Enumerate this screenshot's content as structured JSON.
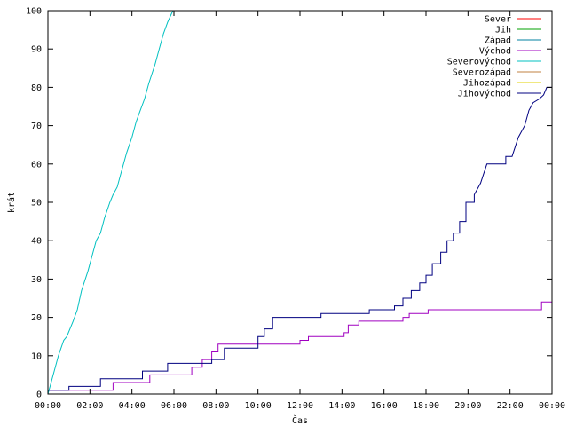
{
  "chart_data": {
    "type": "line",
    "xlabel": "Čas",
    "ylabel": "krát",
    "xlim": [
      0,
      24
    ],
    "ylim": [
      0,
      100
    ],
    "x_ticks": [
      "00:00",
      "02:00",
      "04:00",
      "06:00",
      "08:00",
      "10:00",
      "12:00",
      "14:00",
      "16:00",
      "18:00",
      "20:00",
      "22:00",
      "00:00"
    ],
    "y_ticks": [
      "0",
      "10",
      "20",
      "30",
      "40",
      "50",
      "60",
      "70",
      "80",
      "90",
      "100"
    ],
    "grid": false,
    "legend_position": "top-right",
    "series": [
      {
        "name": "Sever",
        "color": "#ff0000",
        "points": []
      },
      {
        "name": "Jih",
        "color": "#00a000",
        "points": []
      },
      {
        "name": "Západ",
        "color": "#0080a0",
        "points": []
      },
      {
        "name": "Východ",
        "color": "#a000c0",
        "points": [
          [
            0.0,
            1
          ],
          [
            3.1,
            1
          ],
          [
            3.1,
            3
          ],
          [
            4.85,
            3
          ],
          [
            4.85,
            5
          ],
          [
            6.85,
            5
          ],
          [
            6.85,
            7
          ],
          [
            7.35,
            7
          ],
          [
            7.35,
            9
          ],
          [
            7.8,
            9
          ],
          [
            7.8,
            11
          ],
          [
            8.1,
            11
          ],
          [
            8.1,
            13
          ],
          [
            12.0,
            13
          ],
          [
            12.0,
            14
          ],
          [
            12.4,
            14
          ],
          [
            12.4,
            15
          ],
          [
            14.1,
            15
          ],
          [
            14.1,
            16
          ],
          [
            14.3,
            16
          ],
          [
            14.3,
            18
          ],
          [
            14.8,
            18
          ],
          [
            14.8,
            19
          ],
          [
            16.9,
            19
          ],
          [
            16.9,
            20
          ],
          [
            17.2,
            20
          ],
          [
            17.2,
            21
          ],
          [
            18.1,
            21
          ],
          [
            18.1,
            22
          ],
          [
            23.5,
            22
          ],
          [
            23.5,
            24
          ],
          [
            24.0,
            24
          ]
        ]
      },
      {
        "name": "Severovýchod",
        "color": "#00c0c0",
        "points": [
          [
            0.0,
            0
          ],
          [
            0.1,
            2
          ],
          [
            0.3,
            6
          ],
          [
            0.5,
            10
          ],
          [
            0.75,
            14
          ],
          [
            0.9,
            15
          ],
          [
            1.2,
            19
          ],
          [
            1.4,
            22
          ],
          [
            1.6,
            27
          ],
          [
            1.9,
            32
          ],
          [
            2.1,
            36
          ],
          [
            2.3,
            40
          ],
          [
            2.5,
            42
          ],
          [
            2.7,
            46
          ],
          [
            2.95,
            50
          ],
          [
            3.1,
            52
          ],
          [
            3.3,
            54
          ],
          [
            3.5,
            58
          ],
          [
            3.75,
            63
          ],
          [
            4.0,
            67
          ],
          [
            4.2,
            71
          ],
          [
            4.4,
            74
          ],
          [
            4.6,
            77
          ],
          [
            4.8,
            81
          ],
          [
            5.1,
            86
          ],
          [
            5.3,
            90
          ],
          [
            5.5,
            94
          ],
          [
            5.7,
            97
          ],
          [
            5.95,
            100
          ]
        ]
      },
      {
        "name": "Severozápad",
        "color": "#c08040",
        "points": []
      },
      {
        "name": "Jihozápad",
        "color": "#e0d000",
        "points": []
      },
      {
        "name": "Jihovýchod",
        "color": "#000080",
        "points": [
          [
            0.0,
            1
          ],
          [
            1.0,
            1
          ],
          [
            1.0,
            2
          ],
          [
            2.5,
            2
          ],
          [
            2.5,
            4
          ],
          [
            4.5,
            4
          ],
          [
            4.5,
            6
          ],
          [
            5.7,
            6
          ],
          [
            5.7,
            8
          ],
          [
            7.8,
            8
          ],
          [
            7.8,
            9
          ],
          [
            8.4,
            9
          ],
          [
            8.4,
            12
          ],
          [
            10.0,
            12
          ],
          [
            10.0,
            15
          ],
          [
            10.3,
            15
          ],
          [
            10.3,
            17
          ],
          [
            10.7,
            17
          ],
          [
            10.7,
            20
          ],
          [
            13.0,
            20
          ],
          [
            13.0,
            21
          ],
          [
            15.3,
            21
          ],
          [
            15.3,
            22
          ],
          [
            16.5,
            22
          ],
          [
            16.5,
            23
          ],
          [
            16.9,
            23
          ],
          [
            16.9,
            25
          ],
          [
            17.3,
            25
          ],
          [
            17.3,
            27
          ],
          [
            17.7,
            27
          ],
          [
            17.7,
            29
          ],
          [
            18.0,
            29
          ],
          [
            18.0,
            31
          ],
          [
            18.3,
            31
          ],
          [
            18.3,
            34
          ],
          [
            18.7,
            34
          ],
          [
            18.7,
            37
          ],
          [
            19.0,
            37
          ],
          [
            19.0,
            40
          ],
          [
            19.3,
            40
          ],
          [
            19.3,
            42
          ],
          [
            19.6,
            42
          ],
          [
            19.6,
            45
          ],
          [
            19.9,
            45
          ],
          [
            19.9,
            50
          ],
          [
            20.3,
            50
          ],
          [
            20.3,
            52
          ],
          [
            20.6,
            55
          ],
          [
            20.9,
            60
          ],
          [
            21.8,
            60
          ],
          [
            21.8,
            62
          ],
          [
            22.1,
            62
          ],
          [
            22.4,
            67
          ],
          [
            22.7,
            70
          ],
          [
            22.9,
            74
          ],
          [
            23.1,
            76
          ],
          [
            23.4,
            77
          ],
          [
            23.6,
            78
          ],
          [
            23.75,
            80
          ],
          [
            24.0,
            80
          ]
        ]
      }
    ]
  }
}
